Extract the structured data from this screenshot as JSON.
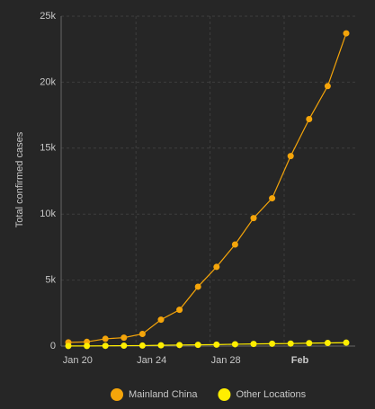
{
  "chart_data": {
    "type": "line",
    "y_axis_label": "Total confirmed cases",
    "categories": [
      "Jan 20",
      null,
      null,
      null,
      "Jan 24",
      null,
      null,
      null,
      "Jan 28",
      null,
      null,
      null,
      "Feb",
      null,
      null,
      null
    ],
    "series": [
      {
        "name": "Mainland China",
        "color": "#f5a50a",
        "values": [
          280,
          320,
          550,
          640,
          920,
          2000,
          2750,
          4500,
          6000,
          7700,
          9700,
          11200,
          14400,
          17200,
          19700,
          23700
        ]
      },
      {
        "name": "Other Locations",
        "color": "#ffee00",
        "values": [
          6,
          10,
          20,
          30,
          40,
          60,
          80,
          95,
          110,
          140,
          160,
          180,
          190,
          220,
          240,
          260
        ]
      }
    ],
    "ylim": [
      0,
      25000
    ],
    "yticks": [
      0,
      {
        "value": 5000,
        "label": "5k"
      },
      {
        "value": 10000,
        "label": "10k"
      },
      {
        "value": 15000,
        "label": "15k"
      },
      {
        "value": 20000,
        "label": "20k"
      },
      {
        "value": 25000,
        "label": "25k"
      }
    ],
    "grid": true,
    "legend": "bottom"
  }
}
